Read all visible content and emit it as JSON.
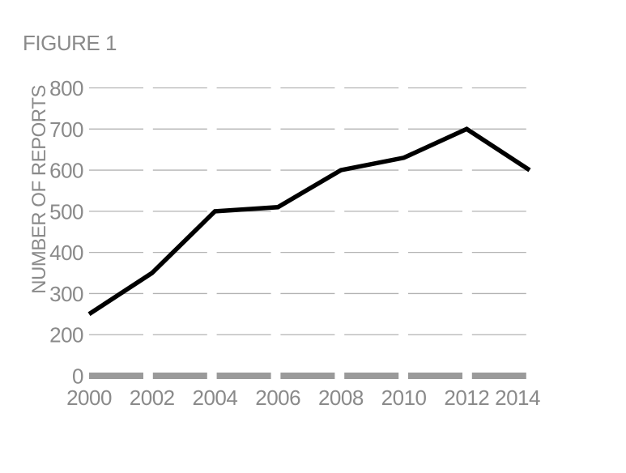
{
  "figure": {
    "label": "FIGURE 1"
  },
  "chart_data": {
    "type": "line",
    "title": "FIGURE 1",
    "xlabel": "",
    "ylabel": "NUMBER OF REPORTS",
    "categories": [
      "2000",
      "2002",
      "2004",
      "2006",
      "2008",
      "2010",
      "2012",
      "2014"
    ],
    "series": [
      {
        "name": "Number of reports",
        "values": [
          250,
          350,
          500,
          510,
          600,
          630,
          700,
          600
        ]
      }
    ],
    "y_ticks": [
      800,
      700,
      600,
      500,
      400,
      300,
      200,
      0
    ],
    "axis_note": "value axis labels skip 100; 0 row sits one gridline step below 200",
    "grid": "horizontal dashed gridlines on, vertical off",
    "legend_position": "none",
    "colors": {
      "line": "#000000",
      "gridline": "#b3b3b3",
      "zero_baseline": "#9a9a9a",
      "text": "#8a8a8a",
      "background": "#ffffff"
    }
  }
}
